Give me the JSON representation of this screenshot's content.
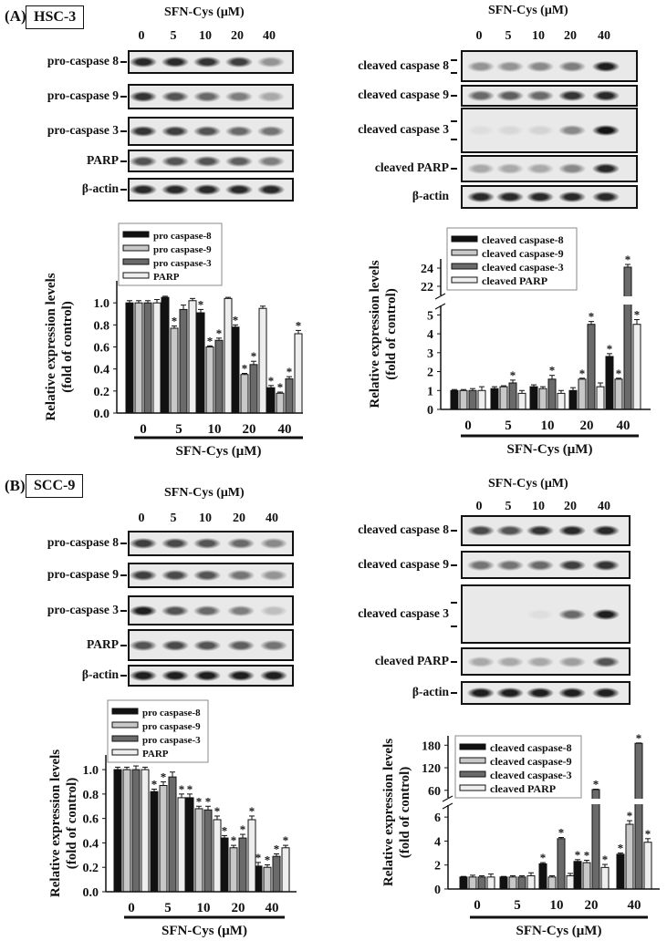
{
  "panels": [
    {
      "label": "(A)",
      "cell_line": "HSC-3",
      "left_blot": {
        "header": "SFN-Cys  (μM)",
        "lanes": [
          "0",
          "5",
          "10",
          "20",
          "40"
        ],
        "rows": [
          {
            "label": "pro-caspase 8",
            "markers": 1,
            "band_intensity": [
              0.9,
              0.9,
              0.85,
              0.8,
              0.4
            ]
          },
          {
            "label": "pro-caspase 9",
            "markers": 1,
            "band_intensity": [
              0.85,
              0.7,
              0.6,
              0.5,
              0.3
            ]
          },
          {
            "label": "pro-caspase 3",
            "markers": 1,
            "band_intensity": [
              0.85,
              0.8,
              0.7,
              0.6,
              0.55
            ]
          },
          {
            "label": "PARP",
            "markers": 1,
            "band_intensity": [
              0.7,
              0.7,
              0.7,
              0.65,
              0.5
            ]
          },
          {
            "label": "β-actin",
            "markers": 1,
            "band_intensity": [
              0.9,
              0.9,
              0.9,
              0.9,
              0.9
            ]
          }
        ]
      },
      "right_blot": {
        "header": "SFN-Cys  (μM)",
        "lanes": [
          "0",
          "5",
          "10",
          "20",
          "40"
        ],
        "rows": [
          {
            "label": "cleaved caspase 8",
            "markers": 2,
            "band_intensity": [
              0.4,
              0.4,
              0.45,
              0.5,
              0.95
            ]
          },
          {
            "label": "cleaved caspase 9",
            "markers": 1,
            "band_intensity": [
              0.6,
              0.65,
              0.6,
              0.85,
              0.9
            ]
          },
          {
            "label": "cleaved caspase 3",
            "markers": 2,
            "band_intensity": [
              0.05,
              0.08,
              0.1,
              0.45,
              1.0
            ]
          },
          {
            "label": "cleaved PARP",
            "markers": 1,
            "band_intensity": [
              0.3,
              0.3,
              0.3,
              0.45,
              0.9
            ]
          },
          {
            "label": "β-actin",
            "markers": 0,
            "band_intensity": [
              0.9,
              0.9,
              0.9,
              0.9,
              0.9
            ]
          }
        ]
      }
    },
    {
      "label": "(B)",
      "cell_line": "SCC-9",
      "left_blot": {
        "header": "SFN-Cys  (μM)",
        "lanes": [
          "0",
          "5",
          "10",
          "20",
          "40"
        ],
        "rows": [
          {
            "label": "pro-caspase 8",
            "markers": 1,
            "band_intensity": [
              0.8,
              0.75,
              0.7,
              0.6,
              0.45
            ]
          },
          {
            "label": "pro-caspase 9",
            "markers": 1,
            "band_intensity": [
              0.8,
              0.75,
              0.7,
              0.55,
              0.4
            ]
          },
          {
            "label": "pro-caspase 3",
            "markers": 1,
            "band_intensity": [
              0.95,
              0.7,
              0.6,
              0.5,
              0.2
            ]
          },
          {
            "label": "PARP",
            "markers": 1,
            "band_intensity": [
              0.7,
              0.75,
              0.7,
              0.65,
              0.55
            ]
          },
          {
            "label": "β-actin",
            "markers": 1,
            "band_intensity": [
              0.95,
              0.95,
              0.95,
              0.95,
              0.95
            ]
          }
        ]
      },
      "right_blot": {
        "header": "SFN-Cys  (μM)",
        "lanes": [
          "0",
          "5",
          "10",
          "20",
          "40"
        ],
        "rows": [
          {
            "label": "cleaved caspase 8",
            "markers": 1,
            "band_intensity": [
              0.75,
              0.7,
              0.85,
              0.9,
              0.9
            ]
          },
          {
            "label": "cleaved caspase 9",
            "markers": 1,
            "band_intensity": [
              0.55,
              0.55,
              0.6,
              0.8,
              0.85
            ]
          },
          {
            "label": "cleaved caspase 3",
            "markers": 2,
            "band_intensity": [
              0.0,
              0.0,
              0.05,
              0.6,
              0.95
            ]
          },
          {
            "label": "cleaved PARP",
            "markers": 1,
            "band_intensity": [
              0.3,
              0.3,
              0.3,
              0.35,
              0.7
            ]
          },
          {
            "label": "β-actin",
            "markers": 1,
            "band_intensity": [
              0.95,
              0.95,
              0.95,
              0.95,
              0.95
            ]
          }
        ]
      }
    }
  ],
  "chart_data": [
    {
      "type": "bar",
      "categories": [
        "0",
        "5",
        "10",
        "20",
        "40"
      ],
      "xlabel": "SFN-Cys (μM)",
      "ylabel": "Relative expression levels",
      "ylabel2": "(fold of control)",
      "yticks": [
        "0.0",
        "0.2",
        "0.4",
        "0.6",
        "0.8",
        "1.0"
      ],
      "ylim": [
        0,
        1.2
      ],
      "legend_position": "top-left",
      "series": [
        {
          "name": "pro caspase-8",
          "color": "#111111",
          "values": [
            1.0,
            1.05,
            0.91,
            0.78,
            0.23
          ],
          "errors": [
            0.02,
            0.01,
            0.03,
            0.02,
            0.02
          ],
          "significant": [
            false,
            false,
            true,
            true,
            true
          ]
        },
        {
          "name": "pro caspase-9",
          "color": "#c8c8c8",
          "values": [
            1.0,
            0.77,
            0.6,
            0.35,
            0.18
          ],
          "errors": [
            0.02,
            0.02,
            0.01,
            0.01,
            0.01
          ],
          "significant": [
            false,
            true,
            true,
            true,
            true
          ]
        },
        {
          "name": "pro caspase-3",
          "color": "#6a6a6a",
          "values": [
            1.0,
            0.94,
            0.66,
            0.44,
            0.31
          ],
          "errors": [
            0.02,
            0.04,
            0.02,
            0.03,
            0.02
          ],
          "significant": [
            false,
            false,
            true,
            true,
            true
          ]
        },
        {
          "name": "PARP",
          "color": "#eeeeee",
          "values": [
            1.0,
            1.02,
            1.04,
            0.95,
            0.72
          ],
          "errors": [
            0.03,
            0.02,
            0.01,
            0.02,
            0.03
          ],
          "significant": [
            false,
            false,
            false,
            false,
            true
          ]
        }
      ]
    },
    {
      "type": "bar",
      "categories": [
        "0",
        "5",
        "10",
        "20",
        "40"
      ],
      "xlabel": "SFN-Cys (μM)",
      "ylabel": "Relative expression levels",
      "ylabel2": "(fold of control)",
      "yticks": [
        "0",
        "1",
        "2",
        "3",
        "4",
        "5",
        "22",
        "24"
      ],
      "ylim": [
        0,
        25
      ],
      "axis_break": [
        5.5,
        21
      ],
      "legend_position": "top-left",
      "series": [
        {
          "name": "cleaved caspase-8",
          "color": "#111111",
          "values": [
            1.0,
            1.1,
            1.2,
            1.0,
            2.8
          ],
          "errors": [
            0.05,
            0.1,
            0.1,
            0.15,
            0.15
          ],
          "significant": [
            false,
            false,
            false,
            false,
            true
          ]
        },
        {
          "name": "cleaved caspase-9",
          "color": "#c8c8c8",
          "values": [
            1.0,
            1.2,
            1.1,
            1.6,
            1.6
          ],
          "errors": [
            0.05,
            0.05,
            0.1,
            0.05,
            0.05
          ],
          "significant": [
            false,
            false,
            false,
            true,
            true
          ]
        },
        {
          "name": "cleaved caspase-3",
          "color": "#6a6a6a",
          "values": [
            1.0,
            1.4,
            1.6,
            4.5,
            24.1
          ],
          "errors": [
            0.1,
            0.15,
            0.2,
            0.15,
            0.3
          ],
          "significant": [
            false,
            true,
            true,
            true,
            true
          ]
        },
        {
          "name": "cleaved PARP",
          "color": "#eeeeee",
          "values": [
            1.0,
            0.85,
            0.85,
            1.2,
            4.5
          ],
          "errors": [
            0.2,
            0.15,
            0.15,
            0.2,
            0.25
          ],
          "significant": [
            false,
            false,
            false,
            false,
            true
          ]
        }
      ]
    },
    {
      "type": "bar",
      "categories": [
        "0",
        "5",
        "10",
        "20",
        "40"
      ],
      "xlabel": "SFN-Cys (μM)",
      "ylabel": "Relative expression levels",
      "ylabel2": "(fold of control)",
      "yticks": [
        "0.0",
        "0.2",
        "0.4",
        "0.6",
        "0.8",
        "1.0"
      ],
      "ylim": [
        0,
        1.1
      ],
      "legend_position": "top-left",
      "series": [
        {
          "name": "pro caspase-8",
          "color": "#111111",
          "values": [
            1.0,
            0.82,
            0.77,
            0.44,
            0.21
          ],
          "errors": [
            0.02,
            0.02,
            0.03,
            0.02,
            0.03
          ],
          "significant": [
            false,
            true,
            true,
            true,
            true
          ]
        },
        {
          "name": "pro caspase-9",
          "color": "#c8c8c8",
          "values": [
            1.0,
            0.87,
            0.68,
            0.36,
            0.2
          ],
          "errors": [
            0.02,
            0.03,
            0.02,
            0.02,
            0.02
          ],
          "significant": [
            false,
            true,
            true,
            true,
            true
          ]
        },
        {
          "name": "pro caspase-3",
          "color": "#6a6a6a",
          "values": [
            1.0,
            0.94,
            0.67,
            0.44,
            0.29
          ],
          "errors": [
            0.03,
            0.04,
            0.03,
            0.03,
            0.02
          ],
          "significant": [
            false,
            false,
            true,
            true,
            true
          ]
        },
        {
          "name": "PARP",
          "color": "#eeeeee",
          "values": [
            1.0,
            0.77,
            0.59,
            0.59,
            0.36
          ],
          "errors": [
            0.02,
            0.03,
            0.03,
            0.03,
            0.02
          ],
          "significant": [
            false,
            true,
            true,
            true,
            true
          ]
        }
      ]
    },
    {
      "type": "bar",
      "categories": [
        "0",
        "5",
        "10",
        "20",
        "40"
      ],
      "xlabel": "SFN-Cys (μM)",
      "ylabel": "Relative expression levels",
      "ylabel2": "(fold of control)",
      "yticks": [
        "0",
        "2",
        "4",
        "6",
        "60",
        "120",
        "180"
      ],
      "ylim": [
        0,
        200
      ],
      "axis_break": [
        7,
        40
      ],
      "legend_position": "top-left",
      "series": [
        {
          "name": "cleaved caspase-8",
          "color": "#111111",
          "values": [
            1.0,
            1.0,
            2.1,
            2.3,
            2.9
          ],
          "errors": [
            0.05,
            0.05,
            0.1,
            0.15,
            0.1
          ],
          "significant": [
            false,
            false,
            true,
            true,
            true
          ]
        },
        {
          "name": "cleaved caspase-9",
          "color": "#c8c8c8",
          "values": [
            1.0,
            1.0,
            1.0,
            2.2,
            5.4
          ],
          "errors": [
            0.15,
            0.1,
            0.1,
            0.2,
            0.3
          ],
          "significant": [
            false,
            false,
            false,
            true,
            true
          ]
        },
        {
          "name": "cleaved caspase-3",
          "color": "#6a6a6a",
          "values": [
            1.0,
            1.0,
            4.2,
            62,
            185
          ],
          "errors": [
            0.1,
            0.1,
            0.1,
            1,
            1
          ],
          "significant": [
            false,
            false,
            true,
            true,
            true
          ]
        },
        {
          "name": "cleaved PARP",
          "color": "#eeeeee",
          "values": [
            1.0,
            1.1,
            1.1,
            1.8,
            3.9
          ],
          "errors": [
            0.25,
            0.25,
            0.2,
            0.25,
            0.3
          ],
          "significant": [
            false,
            false,
            false,
            true,
            true
          ]
        }
      ]
    }
  ]
}
